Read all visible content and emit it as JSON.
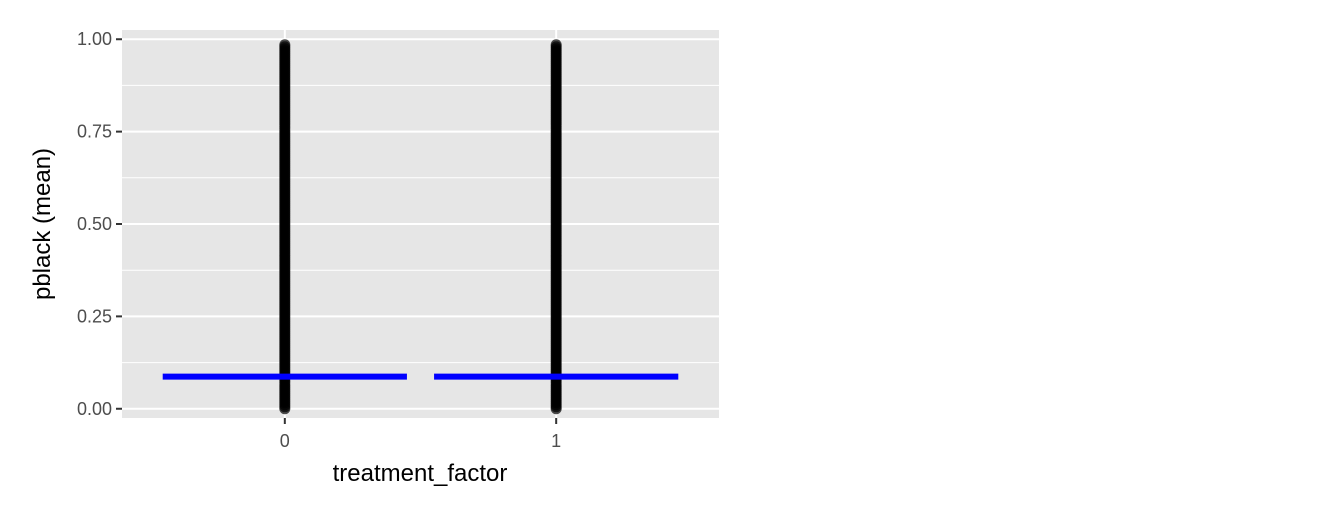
{
  "chart_data": {
    "type": "scatter",
    "title": "",
    "xlabel": "treatment_factor",
    "ylabel": "pblack (mean)",
    "categories": [
      "0",
      "1"
    ],
    "ylim": [
      -0.025,
      1.025
    ],
    "y_ticks": [
      {
        "value": 0.0,
        "label": "0.00"
      },
      {
        "value": 0.25,
        "label": "0.25"
      },
      {
        "value": 0.5,
        "label": "0.50"
      },
      {
        "value": 0.75,
        "label": "0.75"
      },
      {
        "value": 1.0,
        "label": "1.00"
      }
    ],
    "grid": true,
    "legend": "none",
    "point_range": {
      "min": 0.0,
      "max": 0.99
    },
    "mean_lines": [
      {
        "category": "0",
        "value": 0.087
      },
      {
        "category": "1",
        "value": 0.087
      }
    ],
    "colors": {
      "panel": "#e6e6e6",
      "grid": "#ffffff",
      "points": "#000000",
      "mean_line": "#0000ff",
      "axis_text": "#4d4d4d",
      "title_text": "#000000"
    }
  }
}
